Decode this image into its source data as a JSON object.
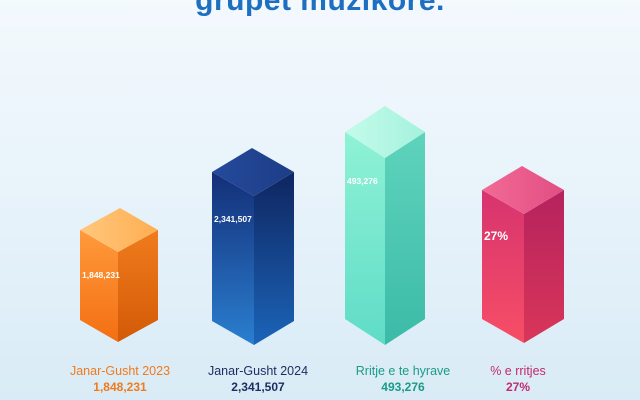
{
  "title": "grupet muzikore.",
  "chart_data": {
    "type": "bar",
    "style": "3d-columns",
    "categories": [
      "Janar-Gusht 2023",
      "Janar-Gusht 2024",
      "Rritje e te hyrave",
      "% e rritjes"
    ],
    "values": [
      1848231,
      2341507,
      493276,
      27
    ],
    "value_labels": [
      "1,848,231",
      "2,341,507",
      "493,276",
      "27%"
    ],
    "colors": [
      "#f7892e",
      "#1b3f8f",
      "#79e6cf",
      "#ea3f6b"
    ],
    "label_colors": [
      "#f07a1c",
      "#1d2f62",
      "#1a9b86",
      "#c22a72"
    ],
    "value_colors": [
      "#f07a1c",
      "#1d2f62",
      "#1a9b86",
      "#c22a72"
    ]
  }
}
